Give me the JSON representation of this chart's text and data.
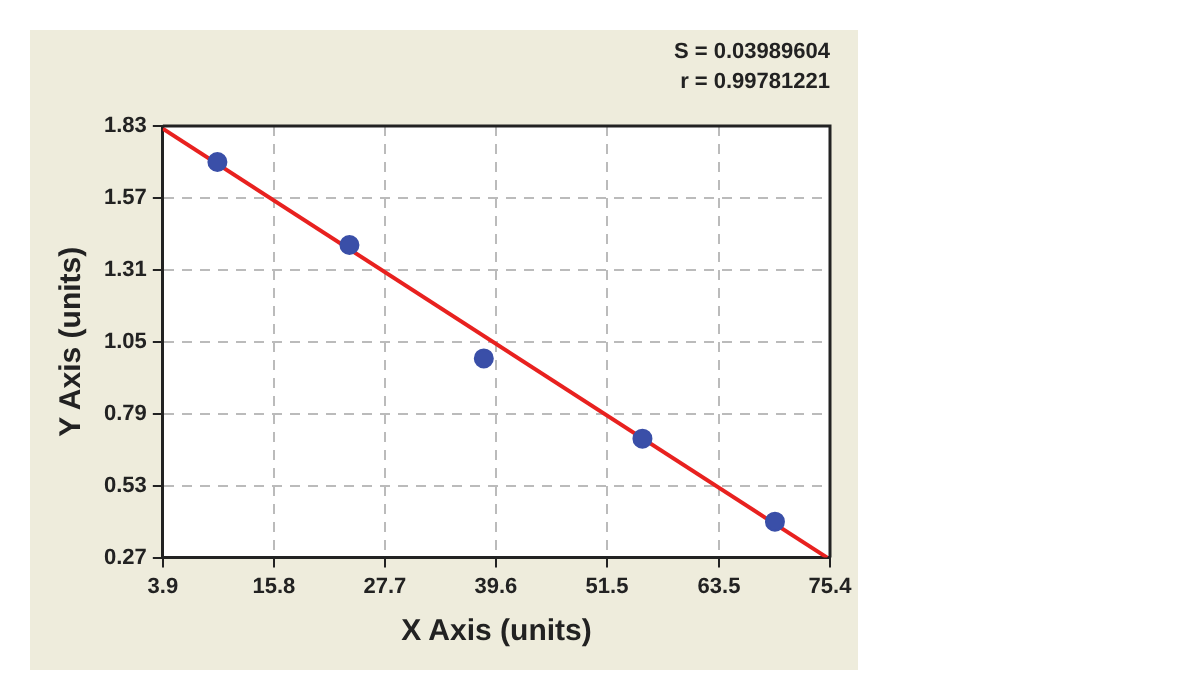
{
  "chart_data": {
    "type": "scatter",
    "xlabel": "X Axis (units)",
    "ylabel": "Y Axis (units)",
    "annotations": [
      "S = 0.03989604",
      "r = 0.99781221"
    ],
    "xlim": [
      3.9,
      75.4
    ],
    "xticks": [
      3.9,
      15.8,
      27.7,
      39.6,
      51.5,
      63.5,
      75.4
    ],
    "ylim": [
      0.27,
      1.83
    ],
    "yticks": [
      0.27,
      0.53,
      0.79,
      1.05,
      1.31,
      1.57,
      1.83
    ],
    "grid": true,
    "marker": "circle",
    "series": [
      {
        "color": "#3a4fa8",
        "x": [
          9.75,
          23.9,
          38.3,
          55.3,
          69.5
        ],
        "values": [
          1.7,
          1.4,
          0.99,
          0.7,
          0.4
        ]
      },
      {
        "type": "line",
        "color": "#e8211f",
        "x": [
          3.9,
          75.1
        ],
        "values": [
          1.82,
          0.27
        ],
        "marker": "none"
      }
    ]
  }
}
